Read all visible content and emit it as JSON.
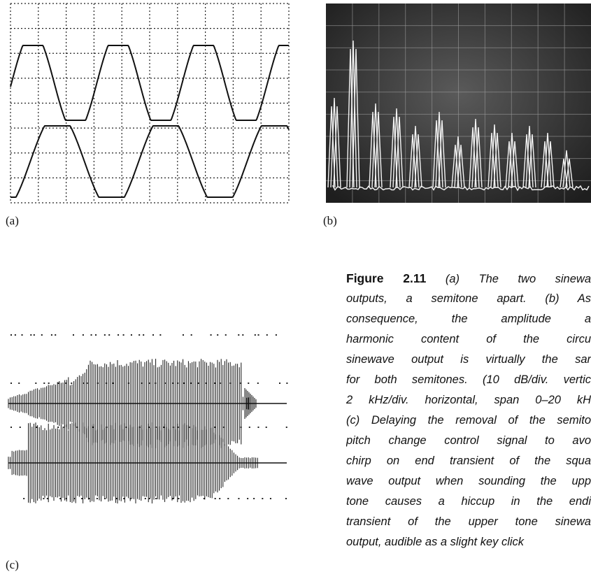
{
  "figure": {
    "panels": [
      "(a)",
      "(b)",
      "(c)"
    ],
    "caption": {
      "label": "Figure 2.11",
      "lines": [
        " (a) The two sinewa",
        "outputs, a semitone apart. (b) As",
        "consequence, the amplitude a",
        "harmonic content of the circu",
        "sinewave output is virtually the sar",
        "for both semitones. (10 dB/div. vertic",
        "2 kHz/div. horizontal, span 0–20 kH",
        "(c) Delaying the removal of the semito",
        "pitch change control signal to avo",
        "chirp on end transient of the squa",
        "wave output when sounding the upp",
        "tone causes a hiccup in the endi",
        "transient of the upper tone sinewa",
        "output, audible as a slight key click"
      ]
    }
  }
}
